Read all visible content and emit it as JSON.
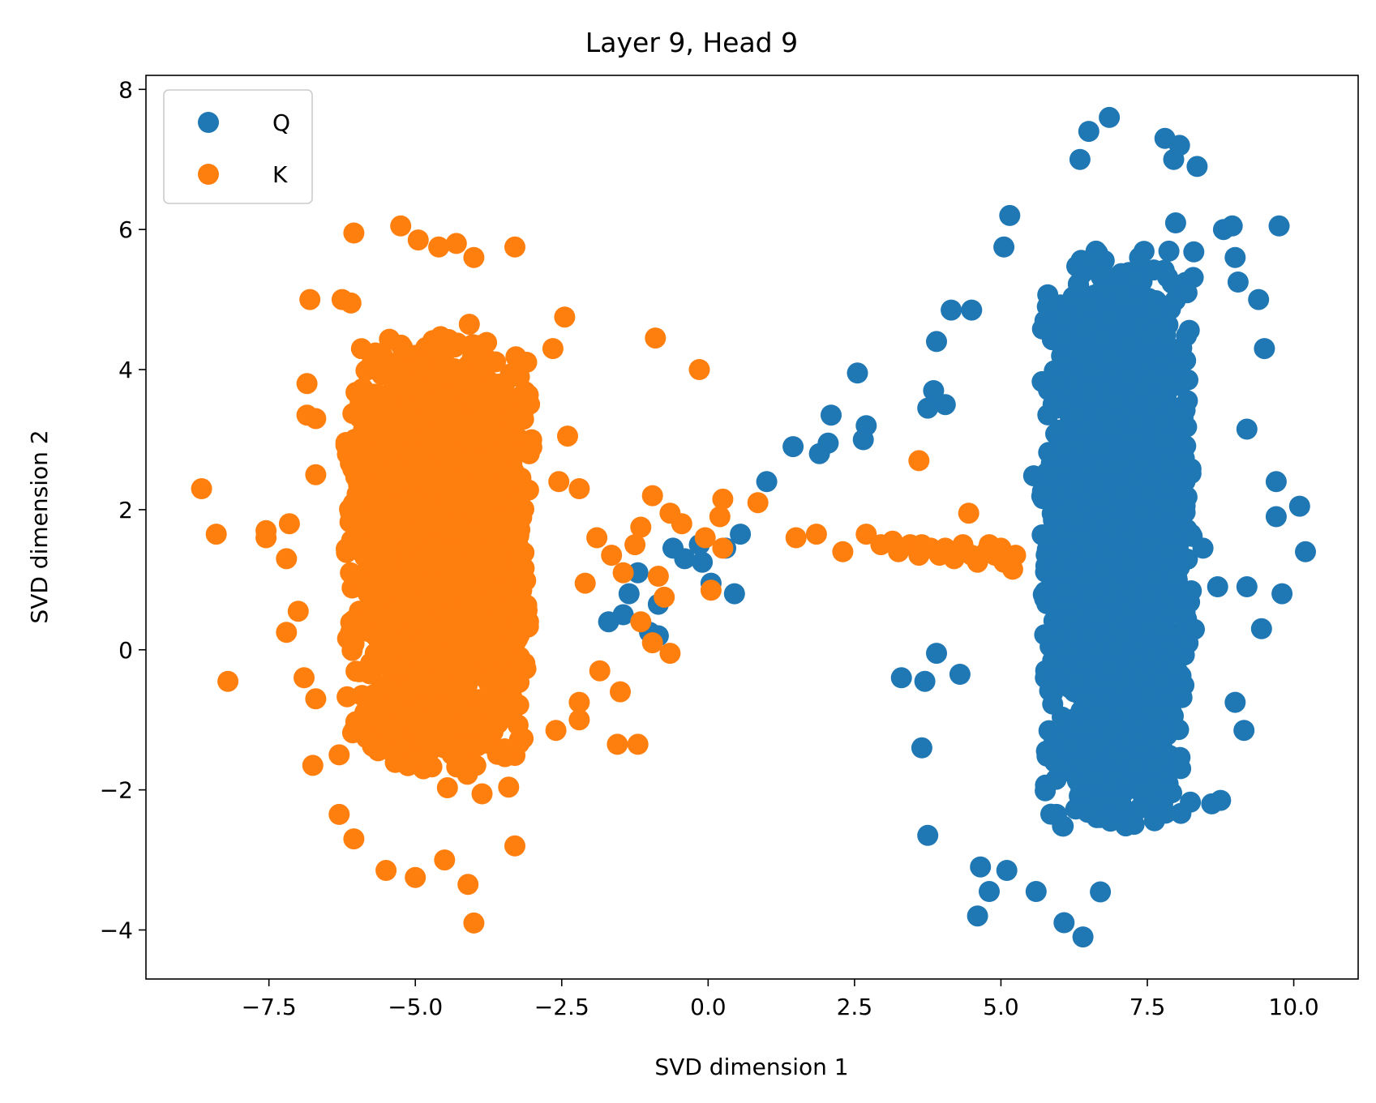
{
  "chart_data": {
    "type": "scatter",
    "title": "Layer 9, Head 9",
    "xlabel": "SVD dimension 1",
    "ylabel": "SVD dimension 2",
    "xlim": [
      -9.6,
      11.1
    ],
    "ylim": [
      -4.7,
      8.2
    ],
    "xticks": [
      -7.5,
      -5.0,
      -2.5,
      0.0,
      2.5,
      5.0,
      7.5,
      10.0
    ],
    "xtick_labels": [
      "−7.5",
      "−5.0",
      "−2.5",
      "0.0",
      "2.5",
      "5.0",
      "7.5",
      "10.0"
    ],
    "yticks": [
      -4,
      -2,
      0,
      2,
      4,
      6,
      8
    ],
    "ytick_labels": [
      "−4",
      "−2",
      "0",
      "2",
      "4",
      "6",
      "8"
    ],
    "grid": false,
    "legend_position": "upper-left",
    "series": [
      {
        "name": "Q",
        "color": "#1f77b4",
        "cluster": {
          "center": [
            7.0,
            1.6
          ],
          "spread": [
            0.7,
            2.4
          ],
          "count": 2600
        },
        "points": [
          [
            9.75,
            6.05
          ],
          [
            10.1,
            2.05
          ],
          [
            10.2,
            1.4
          ],
          [
            9.8,
            0.8
          ],
          [
            9.5,
            4.3
          ],
          [
            9.4,
            5.0
          ],
          [
            9.7,
            2.4
          ],
          [
            9.7,
            1.9
          ],
          [
            9.05,
            5.25
          ],
          [
            9.0,
            5.6
          ],
          [
            9.2,
            3.15
          ],
          [
            9.15,
            -1.15
          ],
          [
            9.0,
            -0.75
          ],
          [
            9.2,
            0.9
          ],
          [
            9.45,
            0.3
          ],
          [
            8.35,
            6.9
          ],
          [
            6.85,
            7.6
          ],
          [
            7.8,
            7.3
          ],
          [
            6.5,
            7.4
          ],
          [
            6.35,
            7.0
          ],
          [
            7.95,
            7.0
          ],
          [
            8.05,
            7.2
          ],
          [
            5.15,
            6.2
          ],
          [
            5.05,
            5.75
          ],
          [
            8.8,
            6.0
          ],
          [
            8.95,
            6.05
          ],
          [
            4.15,
            4.85
          ],
          [
            4.5,
            4.85
          ],
          [
            3.9,
            4.4
          ],
          [
            2.55,
            3.95
          ],
          [
            3.85,
            3.7
          ],
          [
            4.05,
            3.5
          ],
          [
            2.7,
            3.2
          ],
          [
            2.65,
            3.0
          ],
          [
            2.1,
            3.35
          ],
          [
            2.05,
            2.95
          ],
          [
            1.45,
            2.9
          ],
          [
            1.9,
            2.8
          ],
          [
            3.75,
            3.45
          ],
          [
            1.0,
            2.4
          ],
          [
            0.55,
            1.65
          ],
          [
            0.45,
            0.8
          ],
          [
            0.3,
            1.45
          ],
          [
            -0.15,
            1.5
          ],
          [
            -0.1,
            1.25
          ],
          [
            0.05,
            0.95
          ],
          [
            -0.85,
            0.65
          ],
          [
            -1.2,
            1.1
          ],
          [
            -1.45,
            0.5
          ],
          [
            -1.0,
            0.25
          ],
          [
            -0.85,
            0.2
          ],
          [
            -1.7,
            0.4
          ],
          [
            -1.35,
            0.8
          ],
          [
            -0.6,
            1.45
          ],
          [
            -0.4,
            1.3
          ],
          [
            3.3,
            -0.4
          ],
          [
            3.7,
            -0.45
          ],
          [
            3.65,
            -1.4
          ],
          [
            3.75,
            -2.65
          ],
          [
            4.3,
            -0.35
          ],
          [
            3.9,
            -0.05
          ],
          [
            4.6,
            -3.8
          ],
          [
            4.65,
            -3.1
          ],
          [
            4.8,
            -3.45
          ],
          [
            6.4,
            -4.1
          ],
          [
            5.1,
            -3.15
          ],
          [
            5.6,
            -3.45
          ],
          [
            8.6,
            -2.2
          ],
          [
            8.75,
            -2.15
          ],
          [
            8.45,
            1.45
          ],
          [
            8.7,
            0.9
          ]
        ]
      },
      {
        "name": "K",
        "color": "#ff7f0e",
        "cluster": {
          "center": [
            -4.6,
            1.4
          ],
          "spread": [
            0.85,
            1.8
          ],
          "count": 2200
        },
        "points": [
          [
            -8.65,
            2.3
          ],
          [
            -8.4,
            1.65
          ],
          [
            -8.2,
            -0.45
          ],
          [
            -7.55,
            1.6
          ],
          [
            -7.55,
            1.7
          ],
          [
            -7.2,
            0.25
          ],
          [
            -7.2,
            1.3
          ],
          [
            -7.15,
            1.8
          ],
          [
            -7.0,
            0.55
          ],
          [
            -6.8,
            5.0
          ],
          [
            -6.85,
            3.8
          ],
          [
            -6.85,
            3.35
          ],
          [
            -6.7,
            3.3
          ],
          [
            -6.7,
            2.5
          ],
          [
            -6.9,
            -0.4
          ],
          [
            -6.7,
            -0.7
          ],
          [
            -6.75,
            -1.65
          ],
          [
            -6.3,
            -1.5
          ],
          [
            -6.3,
            -2.35
          ],
          [
            -6.05,
            -2.7
          ],
          [
            -6.05,
            5.95
          ],
          [
            -6.1,
            4.95
          ],
          [
            -6.25,
            5.0
          ],
          [
            -5.25,
            6.05
          ],
          [
            -4.95,
            5.85
          ],
          [
            -4.6,
            5.75
          ],
          [
            -4.3,
            5.8
          ],
          [
            -4.0,
            5.6
          ],
          [
            -3.3,
            5.75
          ],
          [
            -5.5,
            -3.15
          ],
          [
            -5.0,
            -3.25
          ],
          [
            -4.5,
            -3.0
          ],
          [
            -4.1,
            -3.35
          ],
          [
            -4.0,
            -3.9
          ],
          [
            -3.3,
            -2.8
          ],
          [
            -2.6,
            -1.15
          ],
          [
            -2.2,
            -0.75
          ],
          [
            -2.2,
            -1.0
          ],
          [
            -1.85,
            -0.3
          ],
          [
            -1.5,
            -0.6
          ],
          [
            -1.55,
            -1.35
          ],
          [
            -1.2,
            -1.35
          ],
          [
            -2.45,
            4.75
          ],
          [
            -2.65,
            4.3
          ],
          [
            -2.4,
            3.05
          ],
          [
            -2.55,
            2.4
          ],
          [
            -2.2,
            2.3
          ],
          [
            -0.9,
            4.45
          ],
          [
            -0.15,
            4.0
          ],
          [
            -0.95,
            2.2
          ],
          [
            -0.65,
            1.95
          ],
          [
            -0.45,
            1.8
          ],
          [
            -0.05,
            1.6
          ],
          [
            0.2,
            1.9
          ],
          [
            0.25,
            2.15
          ],
          [
            0.25,
            1.45
          ],
          [
            0.05,
            0.85
          ],
          [
            -0.95,
            0.1
          ],
          [
            -0.65,
            -0.05
          ],
          [
            -1.15,
            0.4
          ],
          [
            -0.75,
            0.75
          ],
          [
            -0.85,
            1.05
          ],
          [
            -1.45,
            1.1
          ],
          [
            -1.9,
            1.6
          ],
          [
            -2.1,
            0.95
          ],
          [
            -1.65,
            1.35
          ],
          [
            -1.25,
            1.5
          ],
          [
            -1.15,
            1.75
          ],
          [
            0.85,
            2.1
          ],
          [
            1.5,
            1.6
          ],
          [
            1.85,
            1.65
          ],
          [
            2.3,
            1.4
          ],
          [
            2.7,
            1.65
          ],
          [
            2.95,
            1.5
          ],
          [
            3.15,
            1.55
          ],
          [
            3.25,
            1.4
          ],
          [
            3.45,
            1.5
          ],
          [
            3.6,
            1.35
          ],
          [
            3.6,
            2.7
          ],
          [
            3.65,
            1.5
          ],
          [
            3.8,
            1.45
          ],
          [
            3.95,
            1.35
          ],
          [
            4.05,
            1.45
          ],
          [
            4.2,
            1.3
          ],
          [
            4.35,
            1.5
          ],
          [
            4.45,
            1.95
          ],
          [
            4.5,
            1.35
          ],
          [
            4.6,
            1.25
          ],
          [
            4.75,
            1.4
          ],
          [
            4.8,
            1.5
          ],
          [
            4.9,
            1.35
          ],
          [
            5.0,
            1.45
          ],
          [
            5.05,
            1.25
          ],
          [
            5.15,
            1.3
          ],
          [
            5.2,
            1.15
          ],
          [
            5.25,
            1.35
          ]
        ]
      }
    ]
  }
}
